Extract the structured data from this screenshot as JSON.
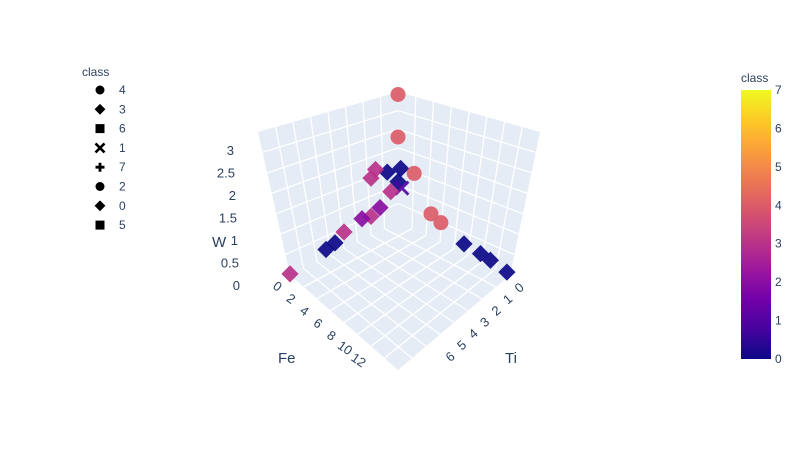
{
  "chart_data": {
    "type": "scatter3d",
    "axes": {
      "x": {
        "label": "Ti",
        "ticks": [
          "0",
          "1",
          "2",
          "3",
          "4",
          "5",
          "6"
        ]
      },
      "y": {
        "label": "Fe",
        "ticks": [
          "0",
          "2",
          "4",
          "6",
          "8",
          "10",
          "12"
        ]
      },
      "z": {
        "label": "W",
        "ticks": [
          "0",
          "0.5",
          "1",
          "1.5",
          "2",
          "2.5",
          "3"
        ]
      }
    },
    "legend": {
      "title": "class",
      "placement": "top-left",
      "entries": [
        {
          "label": "4",
          "symbol": "circle"
        },
        {
          "label": "3",
          "symbol": "diamond"
        },
        {
          "label": "6",
          "symbol": "square"
        },
        {
          "label": "1",
          "symbol": "x"
        },
        {
          "label": "7",
          "symbol": "cross"
        },
        {
          "label": "2",
          "symbol": "circle"
        },
        {
          "label": "0",
          "symbol": "diamond"
        },
        {
          "label": "5",
          "symbol": "square"
        }
      ]
    },
    "colorbar": {
      "title": "class",
      "range": [
        0,
        7
      ],
      "ticks": [
        "0",
        "1",
        "2",
        "3",
        "4",
        "5",
        "6",
        "7"
      ],
      "colors": [
        "#0d0887",
        "#46039f",
        "#7201a8",
        "#9c179e",
        "#bd3786",
        "#d8576b",
        "#ed7953",
        "#fb9f3a",
        "#fdca26",
        "#f0f921"
      ]
    },
    "points": [
      {
        "x": 0,
        "y": 0,
        "z": 3.0,
        "class": 4,
        "symbol": "circle"
      },
      {
        "x": 0,
        "y": 0,
        "z": 2.0,
        "class": 4,
        "symbol": "circle"
      },
      {
        "x": 0,
        "y": 1.2,
        "z": 1.3,
        "class": 0,
        "symbol": "diamond"
      },
      {
        "x": 0.3,
        "y": 0.8,
        "z": 1.45,
        "class": 0,
        "symbol": "diamond"
      },
      {
        "x": 0.6,
        "y": 0.4,
        "z": 1.4,
        "class": 4,
        "symbol": "circle"
      },
      {
        "x": 0,
        "y": 2.5,
        "z": 1.5,
        "class": 3,
        "symbol": "diamond"
      },
      {
        "x": 0,
        "y": 3.0,
        "z": 1.35,
        "class": 3,
        "symbol": "diamond"
      },
      {
        "x": 0,
        "y": 0,
        "z": 0.95,
        "class": 0,
        "symbol": "diamond"
      },
      {
        "x": 0.2,
        "y": 0.3,
        "z": 0.9,
        "class": 1,
        "symbol": "x"
      },
      {
        "x": 0,
        "y": 0.8,
        "z": 0.8,
        "class": 3,
        "symbol": "diamond"
      },
      {
        "x": 0,
        "y": 2.0,
        "z": 0.55,
        "class": 2,
        "symbol": "diamond"
      },
      {
        "x": 0,
        "y": 3.0,
        "z": 0.45,
        "class": 3,
        "symbol": "diamond"
      },
      {
        "x": 0,
        "y": 4.0,
        "z": 0.5,
        "class": 2,
        "symbol": "diamond"
      },
      {
        "x": 0,
        "y": 6.0,
        "z": 0.4,
        "class": 3,
        "symbol": "diamond"
      },
      {
        "x": 0,
        "y": 7.0,
        "z": 0.25,
        "class": 0,
        "symbol": "diamond"
      },
      {
        "x": 0,
        "y": 8.0,
        "z": 0.2,
        "class": 0,
        "symbol": "diamond"
      },
      {
        "x": 0,
        "y": 12.0,
        "z": 0.05,
        "class": 3,
        "symbol": "diamond"
      },
      {
        "x": 1.0,
        "y": 0,
        "z": 0.55,
        "class": 4,
        "symbol": "circle"
      },
      {
        "x": 1.3,
        "y": 0,
        "z": 0.45,
        "class": 4,
        "symbol": "circle"
      },
      {
        "x": 2.0,
        "y": 0,
        "z": 0.2,
        "class": 0,
        "symbol": "diamond"
      },
      {
        "x": 2.5,
        "y": 0,
        "z": 0.15,
        "class": 0,
        "symbol": "diamond"
      },
      {
        "x": 2.8,
        "y": 0,
        "z": 0.1,
        "class": 0,
        "symbol": "diamond"
      },
      {
        "x": 3.3,
        "y": 0,
        "z": 0.0,
        "class": 0,
        "symbol": "diamond"
      }
    ]
  }
}
